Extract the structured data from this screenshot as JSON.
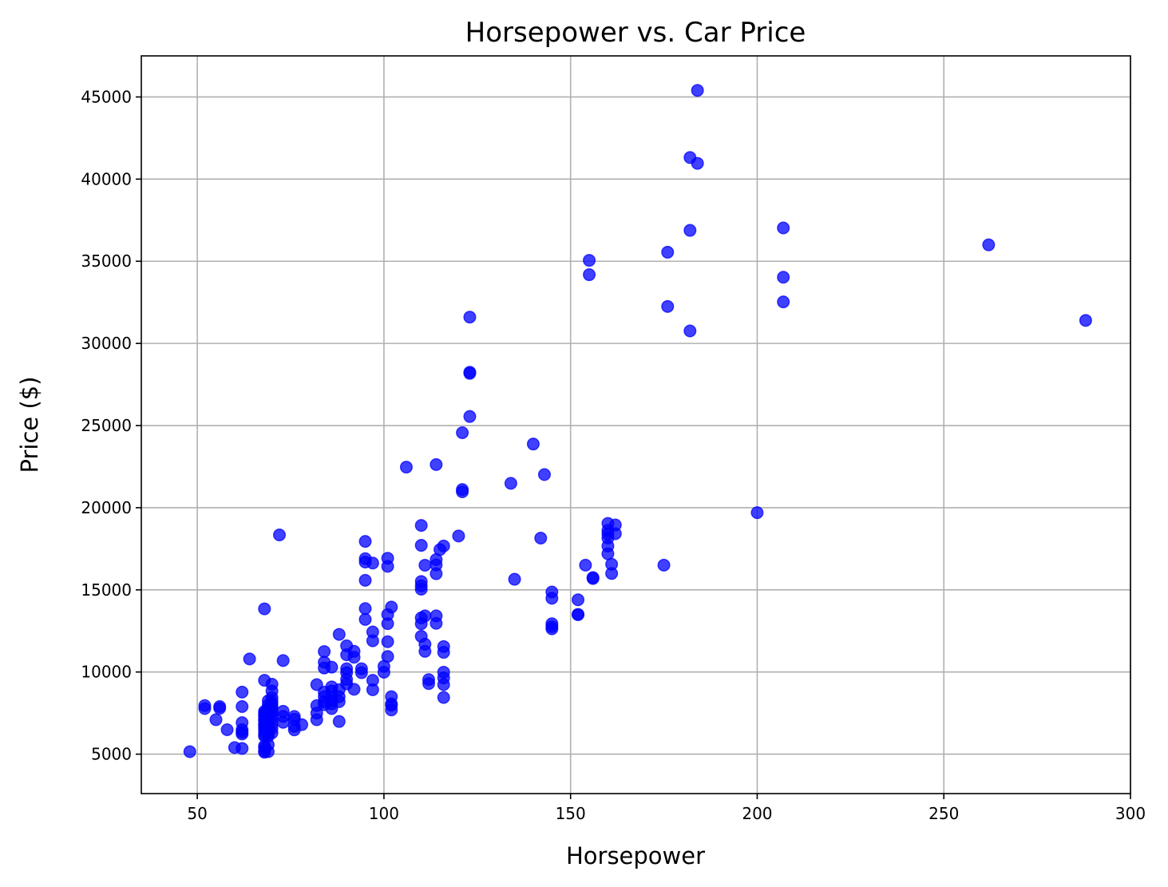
{
  "chart_data": {
    "type": "scatter",
    "title": "Horsepower vs. Car Price",
    "xlabel": "Horsepower",
    "ylabel": "Price ($)",
    "xlim": [
      35,
      300
    ],
    "ylim": [
      2600,
      47500
    ],
    "xticks": [
      50,
      100,
      150,
      200,
      250,
      300
    ],
    "xtick_labels": [
      "50",
      "100",
      "150",
      "200",
      "250",
      "300"
    ],
    "yticks": [
      5000,
      10000,
      15000,
      20000,
      25000,
      30000,
      35000,
      40000,
      45000
    ],
    "ytick_labels": [
      "5000",
      "10000",
      "15000",
      "20000",
      "25000",
      "30000",
      "35000",
      "40000",
      "45000"
    ],
    "grid": true,
    "marker_color": "#0000ff",
    "marker_alpha": 0.75,
    "points": [
      [
        48,
        5151
      ],
      [
        52,
        7957
      ],
      [
        52,
        7775
      ],
      [
        55,
        7099
      ],
      [
        56,
        7788
      ],
      [
        56,
        7898
      ],
      [
        58,
        6488
      ],
      [
        60,
        5399
      ],
      [
        62,
        6229
      ],
      [
        62,
        6338
      ],
      [
        62,
        6488
      ],
      [
        62,
        6918
      ],
      [
        62,
        7898
      ],
      [
        62,
        8778
      ],
      [
        62,
        5348
      ],
      [
        64,
        10795
      ],
      [
        68,
        5118
      ],
      [
        68,
        5195
      ],
      [
        68,
        5389
      ],
      [
        68,
        5499
      ],
      [
        68,
        6095
      ],
      [
        68,
        6189
      ],
      [
        68,
        6377
      ],
      [
        68,
        6529
      ],
      [
        68,
        6669
      ],
      [
        68,
        6785
      ],
      [
        68,
        6849
      ],
      [
        68,
        7053
      ],
      [
        68,
        7126
      ],
      [
        68,
        7295
      ],
      [
        68,
        7395
      ],
      [
        68,
        7499
      ],
      [
        68,
        7603
      ],
      [
        68,
        9495
      ],
      [
        68,
        13845
      ],
      [
        69,
        5151
      ],
      [
        69,
        5572
      ],
      [
        69,
        6095
      ],
      [
        69,
        6295
      ],
      [
        69,
        6575
      ],
      [
        69,
        6795
      ],
      [
        69,
        7129
      ],
      [
        69,
        7295
      ],
      [
        69,
        7463
      ],
      [
        69,
        7609
      ],
      [
        69,
        7799
      ],
      [
        69,
        7999
      ],
      [
        69,
        8249
      ],
      [
        70,
        6295
      ],
      [
        70,
        6575
      ],
      [
        70,
        6855
      ],
      [
        70,
        7150
      ],
      [
        70,
        7349
      ],
      [
        70,
        7603
      ],
      [
        70,
        7788
      ],
      [
        70,
        7898
      ],
      [
        70,
        8058
      ],
      [
        70,
        8238
      ],
      [
        70,
        8449
      ],
      [
        70,
        8845
      ],
      [
        70,
        9258
      ],
      [
        72,
        18344
      ],
      [
        73,
        6938
      ],
      [
        73,
        7299
      ],
      [
        73,
        7609
      ],
      [
        73,
        10698
      ],
      [
        76,
        6479
      ],
      [
        76,
        6692
      ],
      [
        76,
        7126
      ],
      [
        76,
        7295
      ],
      [
        78,
        6795
      ],
      [
        82,
        7099
      ],
      [
        82,
        7499
      ],
      [
        82,
        7957
      ],
      [
        82,
        9233
      ],
      [
        84,
        8013
      ],
      [
        84,
        8189
      ],
      [
        84,
        8495
      ],
      [
        84,
        8778
      ],
      [
        84,
        10245
      ],
      [
        84,
        10595
      ],
      [
        84,
        11245
      ],
      [
        86,
        7775
      ],
      [
        86,
        8058
      ],
      [
        86,
        8238
      ],
      [
        86,
        8449
      ],
      [
        86,
        8845
      ],
      [
        86,
        9095
      ],
      [
        86,
        10295
      ],
      [
        88,
        6989
      ],
      [
        88,
        8195
      ],
      [
        88,
        8495
      ],
      [
        88,
        8921
      ],
      [
        88,
        12290
      ],
      [
        90,
        9279
      ],
      [
        90,
        9549
      ],
      [
        90,
        9959
      ],
      [
        90,
        10198
      ],
      [
        90,
        11048
      ],
      [
        90,
        11595
      ],
      [
        92,
        8948
      ],
      [
        92,
        10898
      ],
      [
        92,
        11259
      ],
      [
        94,
        9960
      ],
      [
        94,
        10198
      ],
      [
        95,
        13200
      ],
      [
        95,
        13860
      ],
      [
        95,
        15580
      ],
      [
        95,
        16695
      ],
      [
        95,
        16900
      ],
      [
        95,
        17950
      ],
      [
        97,
        8921
      ],
      [
        97,
        9495
      ],
      [
        97,
        11900
      ],
      [
        97,
        12440
      ],
      [
        97,
        16630
      ],
      [
        100,
        9989
      ],
      [
        100,
        10345
      ],
      [
        101,
        10945
      ],
      [
        101,
        11845
      ],
      [
        101,
        12945
      ],
      [
        101,
        13499
      ],
      [
        101,
        16430
      ],
      [
        101,
        16925
      ],
      [
        102,
        7689
      ],
      [
        102,
        7975
      ],
      [
        102,
        8058
      ],
      [
        102,
        8495
      ],
      [
        102,
        13950
      ],
      [
        106,
        22470
      ],
      [
        110,
        12170
      ],
      [
        110,
        12940
      ],
      [
        110,
        13295
      ],
      [
        110,
        15040
      ],
      [
        110,
        15250
      ],
      [
        110,
        15510
      ],
      [
        110,
        17710
      ],
      [
        110,
        18920
      ],
      [
        111,
        11259
      ],
      [
        111,
        11694
      ],
      [
        111,
        13415
      ],
      [
        111,
        16500
      ],
      [
        112,
        9298
      ],
      [
        112,
        9538
      ],
      [
        114,
        12964
      ],
      [
        114,
        13415
      ],
      [
        114,
        15985
      ],
      [
        114,
        16515
      ],
      [
        114,
        16845
      ],
      [
        114,
        22625
      ],
      [
        115,
        17450
      ],
      [
        116,
        8449
      ],
      [
        116,
        9233
      ],
      [
        116,
        9639
      ],
      [
        116,
        9989
      ],
      [
        116,
        11199
      ],
      [
        116,
        11549
      ],
      [
        116,
        17669
      ],
      [
        120,
        18280
      ],
      [
        121,
        20970
      ],
      [
        121,
        21105
      ],
      [
        121,
        24565
      ],
      [
        123,
        25552
      ],
      [
        123,
        28176
      ],
      [
        123,
        28248
      ],
      [
        123,
        31600
      ],
      [
        134,
        21485
      ],
      [
        135,
        15645
      ],
      [
        140,
        23875
      ],
      [
        142,
        18150
      ],
      [
        143,
        22018
      ],
      [
        145,
        12629
      ],
      [
        145,
        12764
      ],
      [
        145,
        12940
      ],
      [
        145,
        14489
      ],
      [
        145,
        14869
      ],
      [
        152,
        13499
      ],
      [
        152,
        13499
      ],
      [
        152,
        14399
      ],
      [
        154,
        16503
      ],
      [
        155,
        34184
      ],
      [
        155,
        35056
      ],
      [
        156,
        15690
      ],
      [
        156,
        15750
      ],
      [
        160,
        17199
      ],
      [
        160,
        17669
      ],
      [
        160,
        18150
      ],
      [
        160,
        18399
      ],
      [
        160,
        18620
      ],
      [
        160,
        19045
      ],
      [
        161,
        15998
      ],
      [
        161,
        16558
      ],
      [
        162,
        18420
      ],
      [
        162,
        18950
      ],
      [
        175,
        16503
      ],
      [
        176,
        32250
      ],
      [
        176,
        35550
      ],
      [
        182,
        30760
      ],
      [
        182,
        36880
      ],
      [
        182,
        41315
      ],
      [
        184,
        40960
      ],
      [
        184,
        45400
      ],
      [
        200,
        19699
      ],
      [
        207,
        32528
      ],
      [
        207,
        34028
      ],
      [
        207,
        37028
      ],
      [
        262,
        36000
      ],
      [
        288,
        31400
      ]
    ]
  }
}
